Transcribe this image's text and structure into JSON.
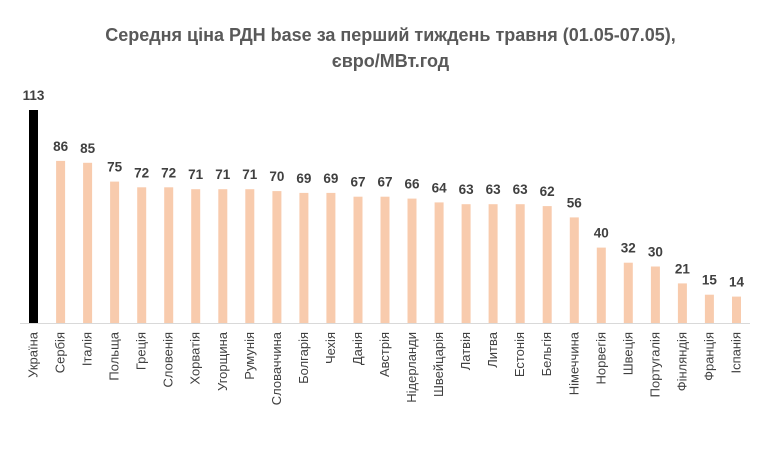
{
  "chart_data": {
    "type": "bar",
    "title": "Середня ціна РДН base за перший тиждень травня (01.05-07.05),",
    "subtitle": "євро/МВт.год",
    "categories": [
      "Україна",
      "Сербія",
      "Італія",
      "Польща",
      "Греція",
      "Словенія",
      "Хорватія",
      "Угорщина",
      "Румунія",
      "Словаччина",
      "Болгарія",
      "Чехія",
      "Данія",
      "Австрія",
      "Нідерланди",
      "Швейцарія",
      "Латвія",
      "Литва",
      "Естонія",
      "Бельгія",
      "Німеччина",
      "Норвегія",
      "Швеція",
      "Португалія",
      "Фінляндія",
      "Франція",
      "Іспанія"
    ],
    "values": [
      113,
      86,
      85,
      75,
      72,
      72,
      71,
      71,
      71,
      70,
      69,
      69,
      67,
      67,
      66,
      64,
      63,
      63,
      63,
      62,
      56,
      40,
      32,
      30,
      21,
      15,
      14
    ],
    "data_labels": [
      "113",
      "86",
      "85",
      "75",
      "72",
      "72",
      "71",
      "71",
      "71",
      "70",
      "69",
      "69",
      "67",
      "67",
      "66",
      "64",
      "63",
      "63",
      "63",
      "62",
      "56",
      "40",
      "32",
      "30",
      "21",
      "15",
      "14"
    ],
    "ylim": [
      0,
      113
    ],
    "grid": false,
    "legend": "none",
    "colors": {
      "highlight": "#000000",
      "bar": "#F8CBAD",
      "text": "#404040",
      "title": "#595959",
      "axis": "#D9D9D9"
    }
  }
}
